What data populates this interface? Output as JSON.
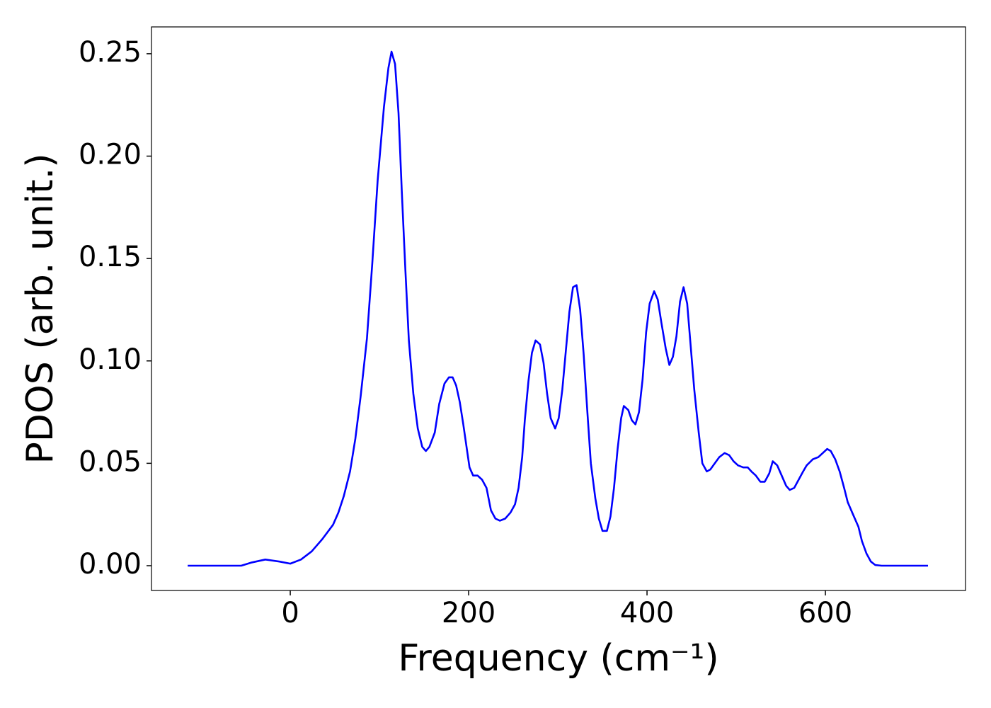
{
  "chart_data": {
    "type": "line",
    "xlabel": "Frequency (cm⁻¹)",
    "ylabel": "PDOS (arb. unit.)",
    "xlim": [
      -155.6,
      757.1
    ],
    "ylim": [
      -0.0121,
      0.2631
    ],
    "xticks": [
      0,
      200,
      400,
      600
    ],
    "yticks": [
      {
        "value": 0,
        "label": "0.00"
      },
      {
        "value": 0.05,
        "label": "0.05"
      },
      {
        "value": 0.1,
        "label": "0.10"
      },
      {
        "value": 0.15,
        "label": "0.15"
      },
      {
        "value": 0.2,
        "label": "0.20"
      },
      {
        "value": 0.25,
        "label": "0.25"
      }
    ],
    "grid": false,
    "series": [
      {
        "color": "#0000ff",
        "x": [
          -115,
          -55,
          -44,
          -28,
          -12,
          0,
          12,
          24,
          36,
          48,
          54,
          60,
          67,
          73,
          79,
          86,
          92,
          98,
          105,
          110,
          113.5,
          117.5,
          121.4,
          125,
          129,
          133,
          138,
          143,
          148,
          152,
          156,
          162,
          167,
          173,
          178,
          182,
          186,
          190,
          194,
          198,
          201,
          205,
          210,
          215,
          220,
          225,
          230,
          235,
          241,
          247,
          252,
          256,
          260,
          263,
          267,
          271,
          275,
          280,
          284,
          288,
          292,
          297,
          301,
          305,
          309,
          313,
          317,
          321,
          325,
          329,
          333,
          337,
          342,
          346,
          350,
          355,
          359,
          363,
          367,
          371,
          374,
          379,
          383,
          387,
          391,
          395,
          399,
          403,
          408,
          412,
          416,
          421,
          425,
          429,
          433,
          437,
          441,
          445,
          449,
          453,
          458,
          462,
          467,
          471,
          476,
          481,
          487,
          492,
          497,
          502,
          508,
          513,
          517,
          522,
          527,
          532,
          537,
          541,
          546,
          551,
          556,
          560,
          565,
          570,
          575,
          579,
          586,
          592,
          597,
          602,
          606,
          611,
          616,
          621,
          625,
          631,
          637,
          641,
          646,
          651,
          656,
          663,
          715
        ],
        "values": [
          0,
          0,
          0.0015,
          0.003,
          0.002,
          0.001,
          0.003,
          0.007,
          0.013,
          0.02,
          0.026,
          0.034,
          0.046,
          0.062,
          0.083,
          0.111,
          0.148,
          0.188,
          0.224,
          0.243,
          0.251,
          0.245,
          0.221,
          0.183,
          0.145,
          0.11,
          0.084,
          0.067,
          0.058,
          0.056,
          0.058,
          0.065,
          0.079,
          0.089,
          0.092,
          0.092,
          0.088,
          0.08,
          0.069,
          0.057,
          0.048,
          0.044,
          0.044,
          0.042,
          0.038,
          0.027,
          0.023,
          0.022,
          0.023,
          0.026,
          0.03,
          0.038,
          0.053,
          0.071,
          0.09,
          0.104,
          0.11,
          0.108,
          0.099,
          0.084,
          0.072,
          0.067,
          0.072,
          0.086,
          0.105,
          0.124,
          0.136,
          0.137,
          0.125,
          0.103,
          0.076,
          0.05,
          0.033,
          0.023,
          0.017,
          0.017,
          0.024,
          0.038,
          0.057,
          0.072,
          0.078,
          0.076,
          0.071,
          0.069,
          0.075,
          0.091,
          0.114,
          0.128,
          0.134,
          0.13,
          0.119,
          0.106,
          0.098,
          0.102,
          0.112,
          0.129,
          0.136,
          0.128,
          0.107,
          0.086,
          0.065,
          0.05,
          0.046,
          0.047,
          0.05,
          0.053,
          0.055,
          0.054,
          0.051,
          0.049,
          0.048,
          0.048,
          0.046,
          0.044,
          0.041,
          0.041,
          0.045,
          0.051,
          0.049,
          0.044,
          0.039,
          0.037,
          0.038,
          0.042,
          0.046,
          0.049,
          0.052,
          0.053,
          0.055,
          0.057,
          0.056,
          0.052,
          0.046,
          0.038,
          0.031,
          0.025,
          0.019,
          0.012,
          0.006,
          0.002,
          0.0003,
          0,
          0
        ]
      }
    ]
  }
}
